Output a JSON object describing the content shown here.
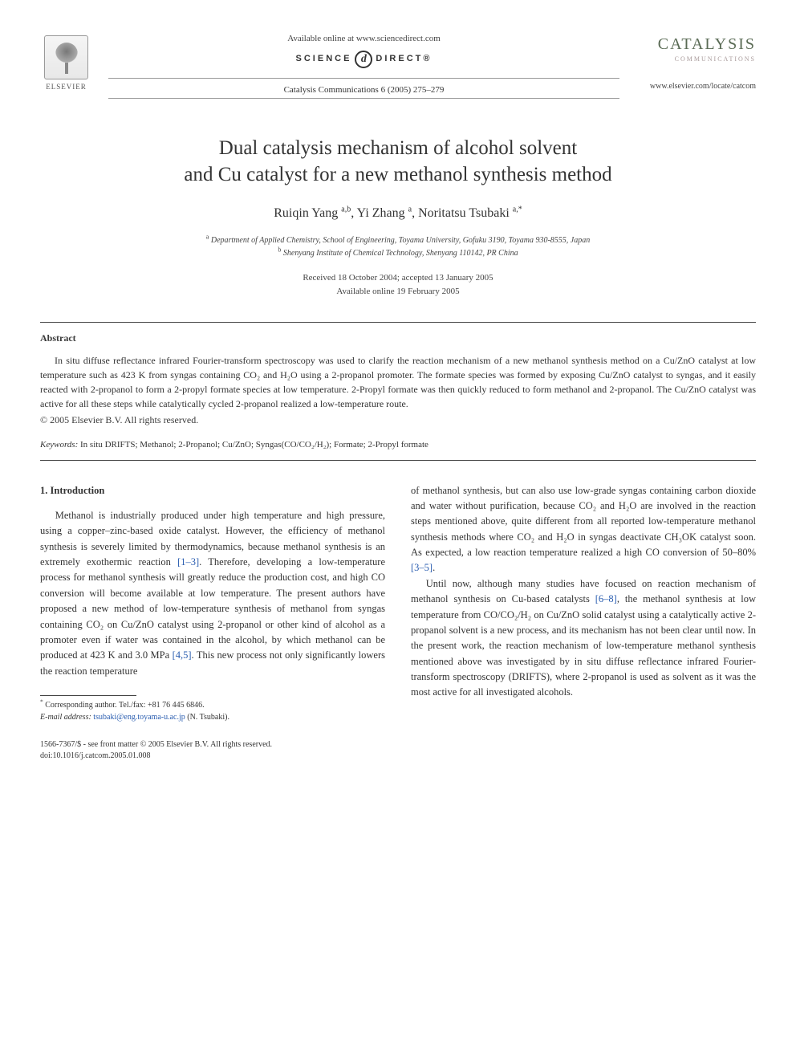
{
  "header": {
    "publisher_name": "ELSEVIER",
    "available_online": "Available online at www.sciencedirect.com",
    "sd_left": "SCIENCE",
    "sd_d": "d",
    "sd_right": "DIRECT®",
    "journal_ref": "Catalysis Communications 6 (2005) 275–279",
    "journal_logo_title": "CATALYSIS",
    "journal_logo_sub": "COMMUNICATIONS",
    "journal_url": "www.elsevier.com/locate/catcom"
  },
  "title_line1": "Dual catalysis mechanism of alcohol solvent",
  "title_line2": "and Cu catalyst for a new methanol synthesis method",
  "authors_html": "Ruiqin Yang <sup>a,b</sup>, Yi Zhang <sup>a</sup>, Noritatsu Tsubaki <sup>a,*</sup>",
  "affiliations": {
    "a": "Department of Applied Chemistry, School of Engineering, Toyama University, Gofuku 3190, Toyama 930-8555, Japan",
    "b": "Shenyang Institute of Chemical Technology, Shenyang 110142, PR China"
  },
  "dates": {
    "received_accepted": "Received 18 October 2004; accepted 13 January 2005",
    "available": "Available online 19 February 2005"
  },
  "abstract": {
    "heading": "Abstract",
    "body": "In situ diffuse reflectance infrared Fourier-transform spectroscopy was used to clarify the reaction mechanism of a new methanol synthesis method on a Cu/ZnO catalyst at low temperature such as 423 K from syngas containing CO₂ and H₂O using a 2-propanol promoter. The formate species was formed by exposing Cu/ZnO catalyst to syngas, and it easily reacted with 2-propanol to form a 2-propyl formate species at low temperature. 2-Propyl formate was then quickly reduced to form methanol and 2-propanol. The Cu/ZnO catalyst was active for all these steps while catalytically cycled 2-propanol realized a low-temperature route.",
    "copyright": "© 2005 Elsevier B.V. All rights reserved."
  },
  "keywords": {
    "label": "Keywords:",
    "text": "In situ DRIFTS; Methanol; 2-Propanol; Cu/ZnO; Syngas(CO/CO₂/H₂); Formate; 2-Propyl formate"
  },
  "introduction": {
    "heading": "1. Introduction",
    "col1_p1_a": "Methanol is industrially produced under high temperature and high pressure, using a copper–zinc-based oxide catalyst. However, the efficiency of methanol synthesis is severely limited by thermodynamics, because methanol synthesis is an extremely exothermic reaction ",
    "col1_ref1": "[1–3]",
    "col1_p1_b": ". Therefore, developing a low-temperature process for methanol synthesis will greatly reduce the production cost, and high CO conversion will become available at low temperature. The present authors have proposed a new method of low-temperature synthesis of methanol from syngas containing CO₂ on Cu/ZnO catalyst using 2-propanol or other kind of alcohol as a promoter even if water was contained in the alcohol, by which methanol can be produced at 423 K and 3.0 MPa ",
    "col1_ref2": "[4,5]",
    "col1_p1_c": ". This new process not only significantly lowers the reaction temperature",
    "col2_p1_a": "of methanol synthesis, but can also use low-grade syngas containing carbon dioxide and water without purification, because CO₂ and H₂O are involved in the reaction steps mentioned above, quite different from all reported low-temperature methanol synthesis methods where CO₂ and H₂O in syngas deactivate CH₃OK catalyst soon. As expected, a low reaction temperature realized a high CO conversion of 50–80% ",
    "col2_ref1": "[3–5]",
    "col2_p1_b": ".",
    "col2_p2_a": "Until now, although many studies have focused on reaction mechanism of methanol synthesis on Cu-based catalysts ",
    "col2_ref2": "[6–8]",
    "col2_p2_b": ", the methanol synthesis at low temperature from CO/CO₂/H₂ on Cu/ZnO solid catalyst using a catalytically active 2-propanol solvent is a new process, and its mechanism has not been clear until now. In the present work, the reaction mechanism of low-temperature methanol synthesis mentioned above was investigated by in situ diffuse reflectance infrared Fourier-transform spectroscopy (DRIFTS), where 2-propanol is used as solvent as it was the most active for all investigated alcohols."
  },
  "footnotes": {
    "corresponding": "Corresponding author. Tel./fax: +81 76 445 6846.",
    "email_label": "E-mail address:",
    "email": "tsubaki@eng.toyama-u.ac.jp",
    "email_person": "(N. Tsubaki)."
  },
  "footer": {
    "line1": "1566-7367/$ - see front matter © 2005 Elsevier B.V. All rights reserved.",
    "line2": "doi:10.1016/j.catcom.2005.01.008"
  },
  "colors": {
    "text": "#3a3a3a",
    "link": "#2a5db0",
    "journal_logo": "#5a6b55",
    "journal_sub": "#a89a9a",
    "rule": "#444444"
  }
}
